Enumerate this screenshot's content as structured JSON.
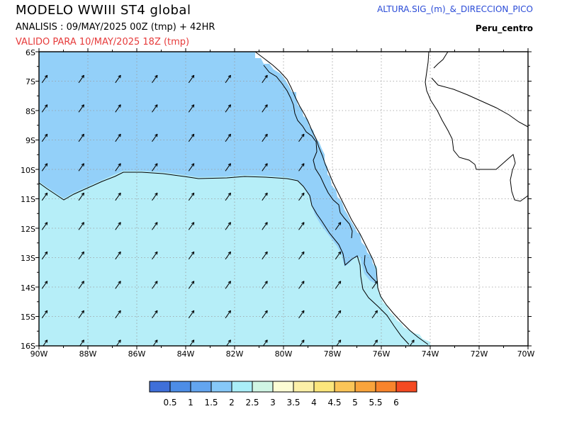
{
  "header": {
    "title": "MODELO WWIII ST4 global",
    "analysis": "ANALISIS : 09/MAY/2025 00Z  (tmp) + 42HR",
    "valid": "VALIDO PARA  10/MAY/2025 18Z  (tmp)",
    "variable": "ALTURA.SIG_(m)_&_DIRECCION_PICO",
    "region": "Peru_centro"
  },
  "axes": {
    "lon_labels": [
      "90W",
      "88W",
      "86W",
      "84W",
      "82W",
      "80W",
      "78W",
      "76W",
      "74W",
      "72W",
      "70W"
    ],
    "lat_labels": [
      "6S",
      "7S",
      "8S",
      "9S",
      "10S",
      "11S",
      "12S",
      "13S",
      "14S",
      "15S",
      "16S"
    ],
    "lon_range": [
      -90,
      -70
    ],
    "lat_range": [
      -16,
      -6
    ],
    "grid": true
  },
  "legend": {
    "colors": [
      "#3f6fd9",
      "#4d8de6",
      "#63a5ef",
      "#86c8f8",
      "#aaeef8",
      "#d0f5e4",
      "#fcfcd4",
      "#fcf0a8",
      "#fce67c",
      "#fbc558",
      "#f9a43c",
      "#f8842c",
      "#f44a22"
    ],
    "labels": [
      "0.5",
      "1",
      "1.5",
      "2",
      "2.5",
      "3",
      "3.5",
      "4",
      "4.5",
      "5",
      "5.5",
      "6"
    ]
  },
  "map_colors": {
    "band_1_5_to_2": "#93d0f9",
    "band_2_to_2_5": "#b6eef8",
    "arrow": "#000000"
  },
  "wave_field": {
    "peak_direction_deg_from_north": 35,
    "arrow_lons": [
      -90,
      -88.5,
      -87,
      -85.5,
      -84,
      -82.5,
      -81,
      -79.5,
      -78,
      -76.5,
      -75
    ],
    "arrow_lats": [
      -7,
      -8,
      -9,
      -10,
      -11,
      -12,
      -13,
      -14,
      -15,
      -16
    ]
  }
}
